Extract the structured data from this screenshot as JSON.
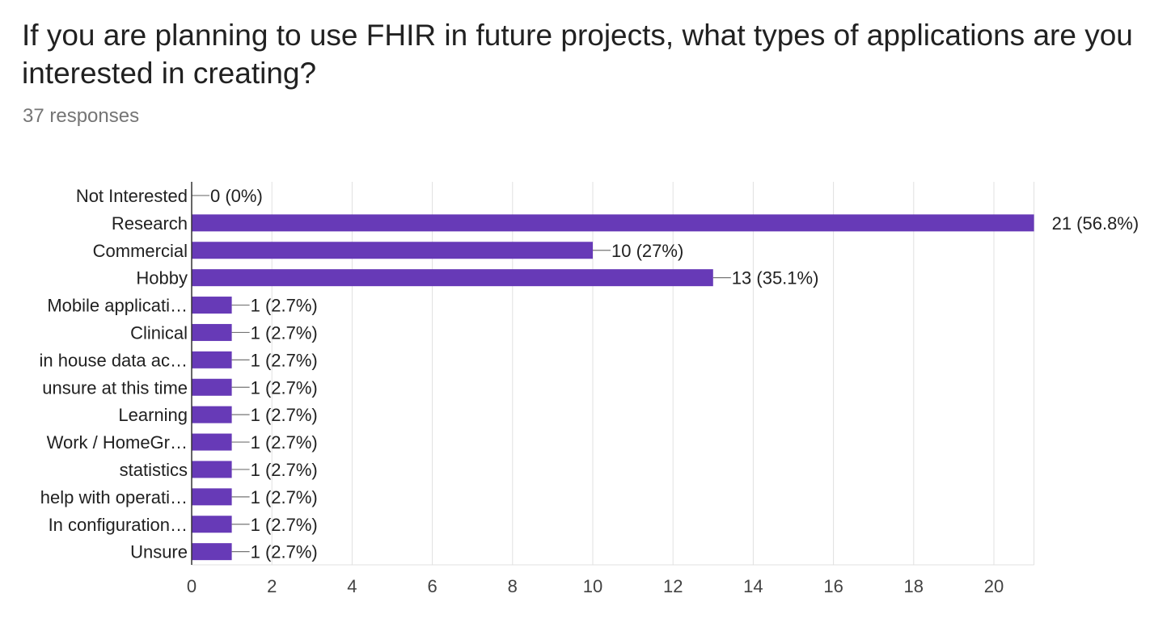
{
  "question": {
    "title": "If you are planning to use FHIR in future projects, what types of applications are you interested in creating?",
    "responses": "37 responses"
  },
  "colors": {
    "bar": "#673ab7",
    "grid": "#e0e0e0",
    "axis": "#333333",
    "connector": "#757575"
  },
  "chart_data": {
    "type": "bar",
    "orientation": "horizontal",
    "categories": [
      "Not Interested",
      "Research",
      "Commercial",
      "Hobby",
      "Mobile applicati…",
      "Clinical",
      "in house data ac…",
      "unsure at this time",
      "Learning",
      "Work / HomeGr…",
      "statistics",
      "help with operati…",
      "In configuration…",
      "Unsure"
    ],
    "values": [
      0,
      21,
      10,
      13,
      1,
      1,
      1,
      1,
      1,
      1,
      1,
      1,
      1,
      1
    ],
    "value_labels": [
      "0 (0%)",
      "21 (56.8%)",
      "10 (27%)",
      "13 (35.1%)",
      "1 (2.7%)",
      "1 (2.7%)",
      "1 (2.7%)",
      "1 (2.7%)",
      "1 (2.7%)",
      "1 (2.7%)",
      "1 (2.7%)",
      "1 (2.7%)",
      "1 (2.7%)",
      "1 (2.7%)"
    ],
    "x_ticks": [
      "0",
      "2",
      "4",
      "6",
      "8",
      "10",
      "12",
      "14",
      "16",
      "18",
      "20"
    ],
    "xlim": [
      0,
      21
    ],
    "grid": true,
    "legend": "none"
  }
}
